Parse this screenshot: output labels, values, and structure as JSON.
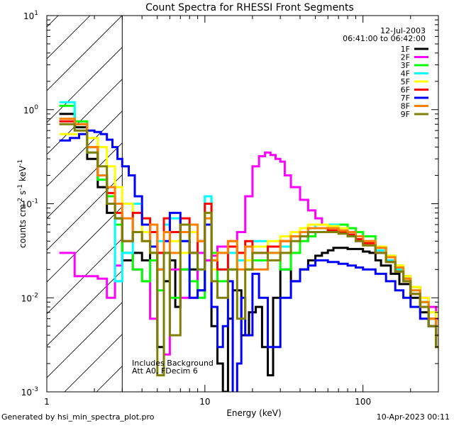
{
  "footer": {
    "generated_by": "Generated by hsi_min_spectra_plot.pro",
    "date": "10-Apr-2023 00:11"
  },
  "chart_data": {
    "type": "line",
    "title": "Count Spectra for RHESSI Front Segments",
    "xlabel": "Energy (keV)",
    "ylabel_parts": {
      "base": "counts cm",
      "exp1": "-2",
      "mid": " s",
      "exp2": "-1",
      "end": " keV",
      "exp3": "-1"
    },
    "xscale": "log",
    "yscale": "log",
    "xlim": [
      1,
      300
    ],
    "ylim": [
      0.001,
      10
    ],
    "x_ticks": [
      {
        "value": 1,
        "label": "1"
      },
      {
        "value": 10,
        "label": "10"
      },
      {
        "value": 100,
        "label": "100"
      }
    ],
    "y_ticks": [
      {
        "value": 0.001,
        "base": "10",
        "exp": "-3"
      },
      {
        "value": 0.01,
        "base": "10",
        "exp": "-2"
      },
      {
        "value": 0.1,
        "base": "10",
        "exp": "-1"
      },
      {
        "value": 1,
        "base": "10",
        "exp": "0"
      },
      {
        "value": 10,
        "base": "10",
        "exp": "1"
      }
    ],
    "excluded_region": {
      "from": 1,
      "to": 3
    },
    "annotations": [
      "Includes Background",
      "Att A0, FDecim 6"
    ],
    "legend_header": [
      "12-Jul-2003",
      "06:41:00 to 06:42:00"
    ],
    "series": [
      {
        "name": "1F",
        "color": "#000000",
        "x": [
          1.2,
          1.5,
          1.8,
          2.1,
          2.4,
          2.7,
          3.0,
          3.5,
          4.0,
          4.5,
          5,
          5.5,
          6,
          6.5,
          7,
          8,
          9,
          10,
          11,
          12,
          13,
          14,
          15,
          17,
          19,
          21,
          23,
          25,
          27,
          30,
          35,
          40,
          45,
          50,
          55,
          60,
          65,
          70,
          80,
          90,
          100,
          110,
          120,
          130,
          150,
          170,
          200,
          230,
          260,
          290
        ],
        "y": [
          0.9,
          0.65,
          0.3,
          0.15,
          0.08,
          0.07,
          0.025,
          0.03,
          0.025,
          0.03,
          0.003,
          0.015,
          0.025,
          0.008,
          0.02,
          0.02,
          0.012,
          0.025,
          0.005,
          0.002,
          0.001,
          0.006,
          0.012,
          0.004,
          0.007,
          0.008,
          0.003,
          0.0015,
          0.01,
          0.02,
          0.015,
          0.02,
          0.025,
          0.028,
          0.03,
          0.032,
          0.034,
          0.034,
          0.033,
          0.033,
          0.031,
          0.03,
          0.025,
          0.022,
          0.018,
          0.014,
          0.01,
          0.007,
          0.005,
          0.003
        ]
      },
      {
        "name": "2F",
        "color": "#ff00ff",
        "x": [
          1.2,
          1.5,
          1.8,
          2.1,
          2.4,
          2.7,
          3.0,
          3.5,
          4,
          4.5,
          5,
          5.5,
          6,
          7,
          8,
          9,
          10,
          11,
          12,
          14,
          16,
          18,
          20,
          22,
          24,
          26,
          28,
          30,
          32,
          35,
          40,
          45,
          50,
          55,
          60,
          70,
          80,
          90,
          100,
          120,
          140,
          160,
          180,
          200,
          230,
          260,
          290
        ],
        "y": [
          0.03,
          0.017,
          0.017,
          0.016,
          0.01,
          0.022,
          0.03,
          0.02,
          0.015,
          0.006,
          0.03,
          0.0025,
          0.02,
          0.01,
          0.01,
          0.03,
          0.025,
          0.028,
          0.035,
          0.04,
          0.05,
          0.12,
          0.25,
          0.32,
          0.35,
          0.33,
          0.3,
          0.28,
          0.2,
          0.15,
          0.11,
          0.085,
          0.07,
          0.06,
          0.055,
          0.05,
          0.045,
          0.04,
          0.04,
          0.03,
          0.025,
          0.02,
          0.017,
          0.013,
          0.01,
          0.008,
          0.006
        ]
      },
      {
        "name": "3F",
        "color": "#00ff00",
        "x": [
          1.2,
          1.5,
          1.8,
          2.1,
          2.4,
          2.7,
          3.0,
          3.5,
          4,
          4.5,
          5,
          5.5,
          6,
          7,
          8,
          9,
          10,
          11,
          12,
          14,
          16,
          18,
          20,
          25,
          30,
          35,
          40,
          45,
          50,
          60,
          70,
          80,
          90,
          100,
          120,
          140,
          160,
          180,
          200,
          230,
          260,
          290
        ],
        "y": [
          1.1,
          0.75,
          0.4,
          0.18,
          0.12,
          0.06,
          0.03,
          0.02,
          0.015,
          0.025,
          0.012,
          0.03,
          0.01,
          0.02,
          0.015,
          0.01,
          0.12,
          0.03,
          0.015,
          0.02,
          0.03,
          0.02,
          0.025,
          0.03,
          0.02,
          0.03,
          0.04,
          0.045,
          0.05,
          0.055,
          0.06,
          0.055,
          0.05,
          0.045,
          0.035,
          0.028,
          0.022,
          0.017,
          0.013,
          0.009,
          0.006,
          0.004
        ]
      },
      {
        "name": "4F",
        "color": "#00ffff",
        "x": [
          1.2,
          1.5,
          1.8,
          2.1,
          2.4,
          2.7,
          3.0,
          3.5,
          4,
          4.5,
          5,
          5.5,
          6,
          7,
          8,
          9,
          10,
          11,
          12,
          14,
          16,
          18,
          20,
          25,
          30,
          35,
          40,
          45,
          50,
          60,
          70,
          80,
          90,
          100,
          120,
          140,
          160,
          180,
          200,
          230,
          260,
          290
        ],
        "y": [
          1.2,
          0.7,
          0.35,
          0.2,
          0.1,
          0.015,
          0.03,
          0.1,
          0.06,
          0.03,
          0.04,
          0.06,
          0.07,
          0.04,
          0.03,
          0.02,
          0.12,
          0.025,
          0.02,
          0.03,
          0.025,
          0.035,
          0.04,
          0.03,
          0.035,
          0.045,
          0.05,
          0.055,
          0.06,
          0.06,
          0.055,
          0.05,
          0.045,
          0.04,
          0.032,
          0.025,
          0.02,
          0.016,
          0.012,
          0.009,
          0.006,
          0.004
        ]
      },
      {
        "name": "5F",
        "color": "#ffff00",
        "x": [
          1.2,
          1.5,
          1.8,
          2.1,
          2.4,
          2.7,
          3.0,
          3.5,
          4,
          4.5,
          5,
          5.5,
          6,
          7,
          8,
          9,
          10,
          11,
          12,
          14,
          16,
          18,
          20,
          25,
          30,
          35,
          40,
          45,
          50,
          60,
          70,
          80,
          90,
          100,
          120,
          140,
          160,
          180,
          200,
          230,
          260,
          290
        ],
        "y": [
          0.55,
          0.55,
          0.5,
          0.4,
          0.25,
          0.15,
          0.1,
          0.08,
          0.05,
          0.03,
          0.02,
          0.05,
          0.04,
          0.03,
          0.05,
          0.04,
          0.08,
          0.02,
          0.03,
          0.04,
          0.03,
          0.025,
          0.035,
          0.04,
          0.045,
          0.05,
          0.055,
          0.06,
          0.06,
          0.058,
          0.055,
          0.05,
          0.045,
          0.04,
          0.035,
          0.028,
          0.022,
          0.017,
          0.013,
          0.01,
          0.007,
          0.005
        ]
      },
      {
        "name": "6F",
        "color": "#ff0000",
        "x": [
          1.2,
          1.5,
          1.8,
          2.1,
          2.4,
          2.7,
          3.0,
          3.5,
          4,
          4.5,
          5,
          5.5,
          6,
          7,
          8,
          9,
          10,
          11,
          12,
          14,
          16,
          18,
          20,
          25,
          30,
          35,
          40,
          45,
          50,
          60,
          70,
          80,
          90,
          100,
          120,
          140,
          160,
          180,
          200,
          230,
          260,
          290
        ],
        "y": [
          0.75,
          0.7,
          0.4,
          0.2,
          0.13,
          0.08,
          0.04,
          0.08,
          0.07,
          0.05,
          0.03,
          0.07,
          0.05,
          0.07,
          0.03,
          0.04,
          0.1,
          0.025,
          0.02,
          0.035,
          0.03,
          0.04,
          0.03,
          0.035,
          0.04,
          0.045,
          0.05,
          0.055,
          0.055,
          0.052,
          0.05,
          0.047,
          0.042,
          0.038,
          0.03,
          0.024,
          0.019,
          0.015,
          0.011,
          0.008,
          0.006,
          0.004
        ]
      },
      {
        "name": "7F",
        "color": "#0000ff",
        "x": [
          1.2,
          1.4,
          1.6,
          1.8,
          2.0,
          2.2,
          2.4,
          2.6,
          2.8,
          3.0,
          3.3,
          3.6,
          4,
          4.5,
          5,
          5.5,
          6,
          7,
          8,
          9,
          10,
          11,
          12,
          13,
          14,
          15,
          16,
          17,
          18,
          20,
          22,
          25,
          30,
          35,
          40,
          45,
          50,
          60,
          70,
          80,
          90,
          100,
          120,
          140,
          160,
          180,
          200,
          230,
          260,
          290
        ],
        "y": [
          0.47,
          0.5,
          0.55,
          0.6,
          0.58,
          0.55,
          0.48,
          0.4,
          0.3,
          0.25,
          0.2,
          0.12,
          0.06,
          0.035,
          0.02,
          0.04,
          0.08,
          0.04,
          0.01,
          0.012,
          0.06,
          0.008,
          0.003,
          0.005,
          0.015,
          0.0008,
          0.002,
          0.01,
          0.004,
          0.018,
          0.01,
          0.003,
          0.01,
          0.015,
          0.02,
          0.022,
          0.025,
          0.024,
          0.023,
          0.022,
          0.021,
          0.02,
          0.018,
          0.015,
          0.012,
          0.01,
          0.008,
          0.006,
          0.005,
          0.004
        ]
      },
      {
        "name": "8F",
        "color": "#ff8000",
        "x": [
          1.2,
          1.5,
          1.8,
          2.1,
          2.4,
          2.7,
          3.0,
          3.5,
          4,
          4.5,
          5,
          5.5,
          6,
          7,
          8,
          9,
          10,
          11,
          12,
          14,
          16,
          18,
          20,
          25,
          30,
          35,
          40,
          45,
          50,
          60,
          70,
          80,
          90,
          100,
          120,
          140,
          160,
          180,
          200,
          230,
          260,
          290
        ],
        "y": [
          0.8,
          0.7,
          0.4,
          0.2,
          0.15,
          0.1,
          0.07,
          0.05,
          0.04,
          0.06,
          0.02,
          0.05,
          0.03,
          0.05,
          0.06,
          0.04,
          0.07,
          0.025,
          0.03,
          0.04,
          0.02,
          0.035,
          0.02,
          0.03,
          0.04,
          0.045,
          0.05,
          0.055,
          0.055,
          0.055,
          0.052,
          0.05,
          0.045,
          0.04,
          0.034,
          0.027,
          0.021,
          0.016,
          0.012,
          0.009,
          0.006,
          0.004
        ]
      },
      {
        "name": "9F",
        "color": "#808000",
        "x": [
          1.2,
          1.5,
          1.8,
          2.1,
          2.4,
          2.7,
          3.0,
          3.5,
          4,
          4.5,
          5,
          5.5,
          6,
          7,
          8,
          9,
          10,
          11,
          12,
          14,
          16,
          18,
          20,
          25,
          30,
          35,
          40,
          45,
          50,
          60,
          70,
          80,
          90,
          100,
          120,
          140,
          160,
          180,
          200,
          230,
          260,
          290
        ],
        "y": [
          0.7,
          0.6,
          0.35,
          0.25,
          0.1,
          0.07,
          0.04,
          0.05,
          0.04,
          0.03,
          0.0015,
          0.03,
          0.004,
          0.06,
          0.03,
          0.02,
          0.08,
          0.015,
          0.01,
          0.02,
          0.006,
          0.02,
          0.03,
          0.025,
          0.03,
          0.04,
          0.045,
          0.05,
          0.05,
          0.05,
          0.048,
          0.045,
          0.04,
          0.036,
          0.03,
          0.024,
          0.019,
          0.015,
          0.011,
          0.008,
          0.005,
          0.003
        ]
      }
    ]
  }
}
